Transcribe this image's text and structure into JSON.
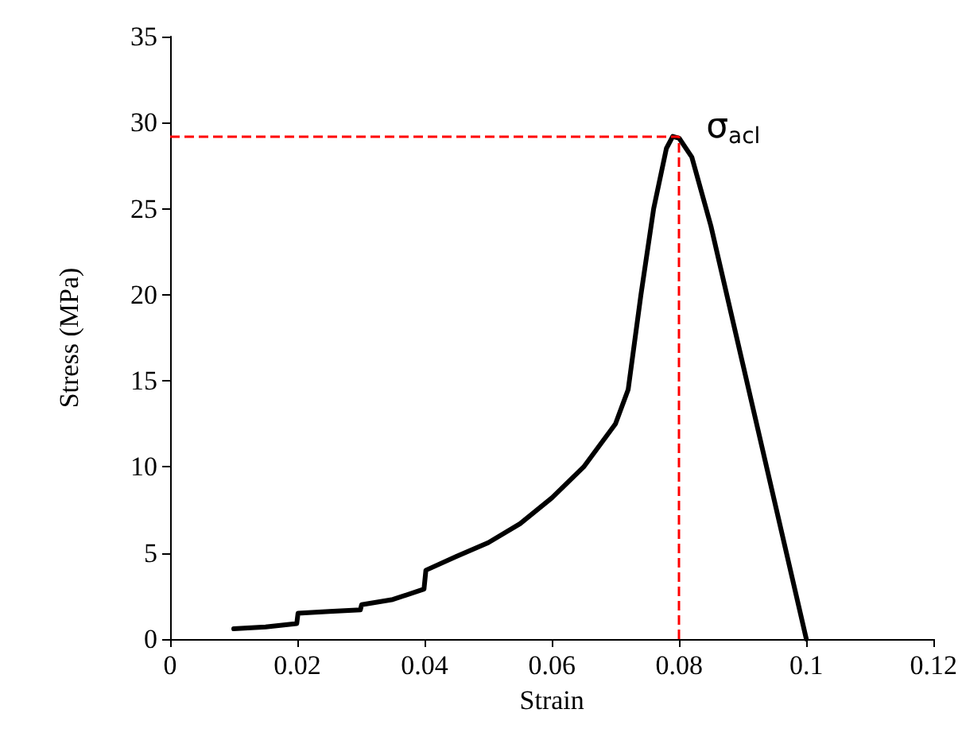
{
  "chart_data": {
    "type": "line",
    "xlabel": "Strain",
    "ylabel": "Stress (MPa)",
    "x": [
      0.01,
      0.015,
      0.0199,
      0.0201,
      0.025,
      0.0299,
      0.0301,
      0.035,
      0.0399,
      0.0402,
      0.045,
      0.05,
      0.055,
      0.06,
      0.065,
      0.07,
      0.072,
      0.074,
      0.076,
      0.078,
      0.079,
      0.08,
      0.082,
      0.085,
      0.09,
      0.095,
      0.1
    ],
    "series": [
      {
        "color": "#000000",
        "values": [
          0.6,
          0.7,
          0.9,
          1.5,
          1.6,
          1.7,
          2.0,
          2.3,
          2.9,
          4.0,
          4.8,
          5.6,
          6.7,
          8.2,
          10.0,
          12.5,
          14.5,
          20,
          25,
          28.5,
          29.2,
          29.1,
          28.0,
          24,
          16,
          8,
          0
        ]
      }
    ],
    "xlim": [
      0,
      0.12
    ],
    "xticks": [
      0,
      0.02,
      0.04,
      0.06,
      0.08,
      0.1,
      0.12
    ],
    "ylim": [
      0,
      35
    ],
    "yticks": [
      0,
      5,
      10,
      15,
      20,
      25,
      30,
      35
    ],
    "grid": false,
    "marker": "none",
    "line_style": "solid",
    "ref_lines": [
      {
        "axis": "x",
        "value": 0.08,
        "color": "#ff0000",
        "line_style": "dashed"
      },
      {
        "axis": "y",
        "value": 29.2,
        "color": "#ff0000",
        "line_style": "dashed"
      }
    ],
    "annotations": [
      {
        "text": "σ$_{acl}$",
        "x": 0.08,
        "y": 29.2
      }
    ]
  }
}
